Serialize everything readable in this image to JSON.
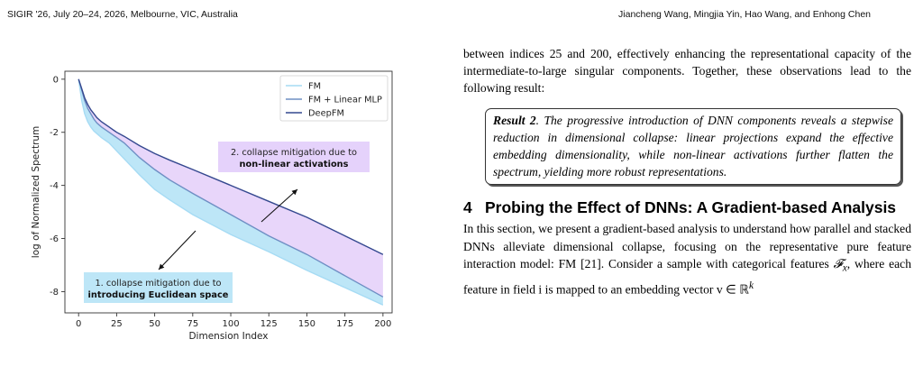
{
  "header": {
    "left": "SIGIR '26, July 20–24, 2026, Melbourne, VIC, Australia",
    "right": "Jiancheng Wang, Mingjia Yin, Hao Wang, and Enhong Chen"
  },
  "colors": {
    "fm": "#a6dbf4",
    "fm_linear_mlp": "#6f8fc4",
    "deepfm": "#34488f",
    "fill_fm": "#bde6f7",
    "fill_nonlinear": "#e8d6fa",
    "annotation_box_euclidean": "#bde6f7",
    "annotation_box_nonlinear": "#e5d2fb"
  },
  "chart_data": {
    "type": "area",
    "xlabel": "Dimension Index",
    "ylabel": "log of Normalized Spectrum",
    "xlim": [
      -9,
      206
    ],
    "ylim": [
      -8.8,
      0.3
    ],
    "xticks": [
      0,
      25,
      50,
      75,
      100,
      125,
      150,
      175,
      200
    ],
    "yticks": [
      0,
      -2,
      -4,
      -6,
      -8
    ],
    "legend_position": "top-right",
    "grid": false,
    "series": [
      {
        "name": "FM",
        "x": [
          0,
          2,
          4,
          6,
          8,
          10,
          12,
          15,
          20,
          25,
          30,
          40,
          50,
          60,
          75,
          100,
          125,
          150,
          175,
          200
        ],
        "y": [
          0,
          -0.8,
          -1.3,
          -1.6,
          -1.8,
          -1.95,
          -2.05,
          -2.2,
          -2.4,
          -2.7,
          -3.0,
          -3.6,
          -4.15,
          -4.55,
          -5.1,
          -5.85,
          -6.5,
          -7.2,
          -7.85,
          -8.5
        ]
      },
      {
        "name": "FM + Linear MLP",
        "x": [
          0,
          2,
          4,
          6,
          8,
          10,
          12,
          15,
          20,
          25,
          30,
          40,
          50,
          60,
          75,
          100,
          125,
          150,
          175,
          200
        ],
        "y": [
          0,
          -0.4,
          -0.8,
          -1.1,
          -1.3,
          -1.5,
          -1.65,
          -1.8,
          -2.0,
          -2.2,
          -2.4,
          -2.95,
          -3.4,
          -3.8,
          -4.3,
          -5.1,
          -5.9,
          -6.6,
          -7.4,
          -8.2
        ]
      },
      {
        "name": "DeepFM",
        "x": [
          0,
          2,
          4,
          6,
          8,
          10,
          12,
          15,
          20,
          25,
          30,
          40,
          50,
          60,
          75,
          100,
          125,
          150,
          175,
          200
        ],
        "y": [
          0,
          -0.35,
          -0.7,
          -0.95,
          -1.15,
          -1.3,
          -1.45,
          -1.6,
          -1.8,
          -2.0,
          -2.15,
          -2.5,
          -2.8,
          -3.05,
          -3.4,
          -4.0,
          -4.6,
          -5.2,
          -5.9,
          -6.6
        ]
      }
    ],
    "annotations": [
      {
        "line1": "1. collapse mitigation due to",
        "line2": "introducing Euclidean space"
      },
      {
        "line1": "2. collapse mitigation due to",
        "line2": "non-linear activations"
      }
    ]
  },
  "text": {
    "para1": "between indices 25 and 200, effectively enhancing the representational capacity of the intermediate-to-large singular components. Together, these observations lead to the following result:",
    "result_label": "Result 2",
    "result_body": ". The progressive introduction of DNN components reveals a stepwise reduction in dimensional collapse: linear projections expand the effective embedding dimensionality, while non-linear activations further flatten the spectrum, yielding more robust representations.",
    "section_number": "4",
    "section_title": "Probing the Effect of DNNs: A Gradient-based Analysis",
    "section_body_1": "In this section, we present a gradient-based analysis to understand how parallel and stacked DNNs alleviate dimensional collapse, focusing on the representative pure feature interaction model: FM [21]. Consider a sample with categorical features ",
    "math_F": "𝓕",
    "math_x": "x",
    "section_body_2": ", where each feature in field i is mapped to an embedding vector v",
    "math_in": " ∈ ℝ",
    "math_k": "k"
  }
}
